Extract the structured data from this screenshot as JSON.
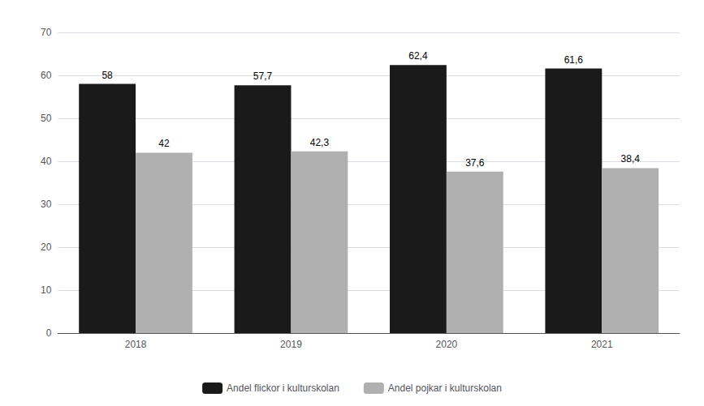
{
  "chart_data": {
    "type": "bar",
    "categories": [
      "2018",
      "2019",
      "2020",
      "2021"
    ],
    "series": [
      {
        "name": "Andel flickor i kulturskolan",
        "color": "#1a1a1a",
        "values": [
          58.0,
          57.7,
          62.4,
          61.6
        ],
        "value_labels": [
          "58",
          "57,7",
          "62,4",
          "61,6"
        ]
      },
      {
        "name": "Andel pojkar i kulturskolan",
        "color": "#b0b0b0",
        "values": [
          42.0,
          42.3,
          37.6,
          38.4
        ],
        "value_labels": [
          "42",
          "42,3",
          "37,6",
          "38,4"
        ]
      }
    ],
    "ylim": [
      0,
      70
    ],
    "yticks": [
      0,
      10,
      20,
      30,
      40,
      50,
      60,
      70
    ],
    "grid": true,
    "legend": "bottom",
    "data_labels": true
  }
}
